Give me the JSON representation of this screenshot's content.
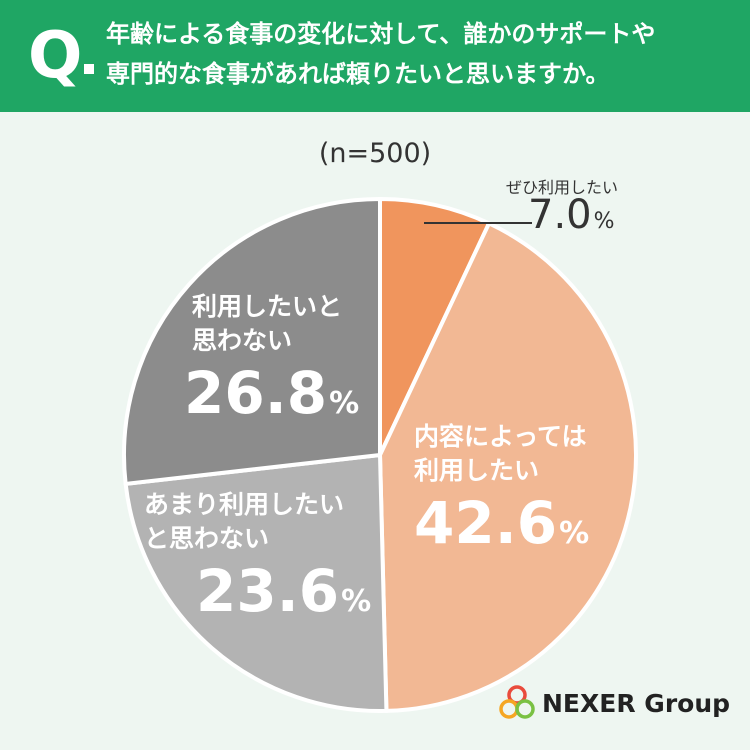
{
  "header": {
    "q_mark": "Q",
    "question_line1": "年齢による食事の変化に対して、誰かのサポートや",
    "question_line2": "専門的な食事があれば頼りたいと思いますか。"
  },
  "sample_size": "(n=500)",
  "chart_data": {
    "type": "pie",
    "categories": [
      "ぜひ利用したい",
      "内容によっては利用したい",
      "あまり利用したいと思わない",
      "利用したいと思わない"
    ],
    "values": [
      7.0,
      42.6,
      23.6,
      26.8
    ],
    "unit": "%",
    "colors": [
      "#f0955d",
      "#f2b894",
      "#b3b3b3",
      "#8c8c8c"
    ],
    "labels": [
      {
        "cat_lines": [
          "ぜひ利用したい"
        ],
        "value_text": "7.0"
      },
      {
        "cat_lines": [
          "内容によっては",
          "利用したい"
        ],
        "value_text": "42.6"
      },
      {
        "cat_lines": [
          "あまり利用したい",
          "と思わない"
        ],
        "value_text": "23.6"
      },
      {
        "cat_lines": [
          "利用したいと",
          "思わない"
        ],
        "value_text": "26.8"
      }
    ]
  },
  "logo": {
    "text": "NEXER Group",
    "ring_colors": [
      "#e94b3c",
      "#f5a623",
      "#7ac143"
    ]
  }
}
